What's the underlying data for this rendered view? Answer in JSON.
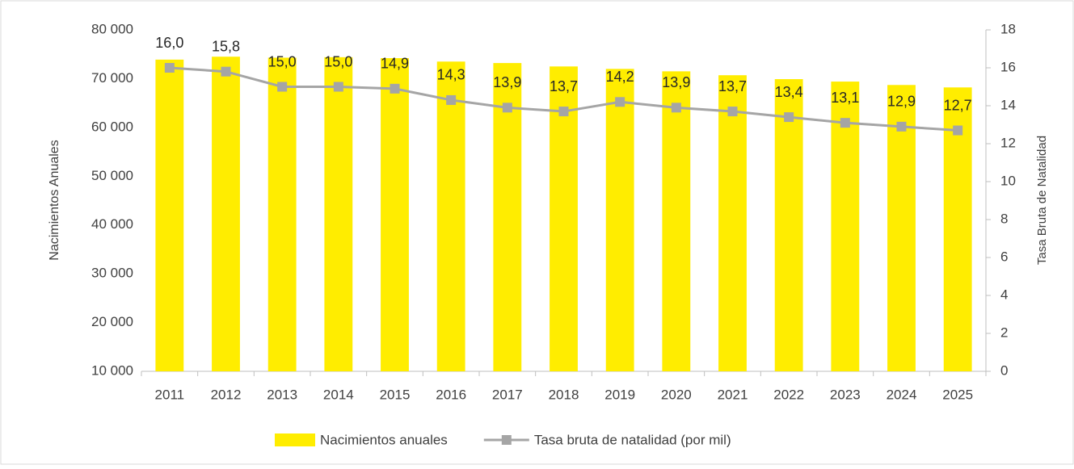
{
  "chart_data": {
    "type": "combo",
    "categories": [
      "2011",
      "2012",
      "2013",
      "2014",
      "2015",
      "2016",
      "2017",
      "2018",
      "2019",
      "2020",
      "2021",
      "2022",
      "2023",
      "2024",
      "2025"
    ],
    "series": [
      {
        "name": "Nacimientos anuales",
        "type": "bar",
        "color": "#ffed00",
        "values": [
          73900,
          74500,
          74300,
          74400,
          74200,
          73500,
          73200,
          72500,
          72000,
          71500,
          70700,
          69900,
          69400,
          68700,
          68200
        ]
      },
      {
        "name": "Tasa bruta de natalidad (por mil)",
        "type": "line",
        "axis": "y2",
        "color": "#a5a5a5",
        "values": [
          16.0,
          15.8,
          15.0,
          15.0,
          14.9,
          14.3,
          13.9,
          13.7,
          14.2,
          13.9,
          13.7,
          13.4,
          13.1,
          12.9,
          12.7
        ],
        "value_labels": [
          "16,0",
          "15,8",
          "15,0",
          "15,0",
          "14,9",
          "14,3",
          "13,9",
          "13,7",
          "14,2",
          "13,9",
          "13,7",
          "13,4",
          "13,1",
          "12,9",
          "12,7"
        ]
      }
    ],
    "ylabel": "Nacimientos Anuales",
    "y2label": "Tasa Bruta de Natalidad",
    "ylim": [
      10000,
      80000
    ],
    "yticks": [
      {
        "value": 10000,
        "label": "10 000"
      },
      {
        "value": 20000,
        "label": "20 000"
      },
      {
        "value": 30000,
        "label": "30 000"
      },
      {
        "value": 40000,
        "label": "40 000"
      },
      {
        "value": 50000,
        "label": "50 000"
      },
      {
        "value": 60000,
        "label": "60 000"
      },
      {
        "value": 70000,
        "label": "70 000"
      },
      {
        "value": 80000,
        "label": "80 000"
      }
    ],
    "y2lim": [
      0,
      18
    ],
    "y2ticks": [
      0,
      2,
      4,
      6,
      8,
      10,
      12,
      14,
      16,
      18
    ],
    "grid": false,
    "legend": "bottom"
  }
}
